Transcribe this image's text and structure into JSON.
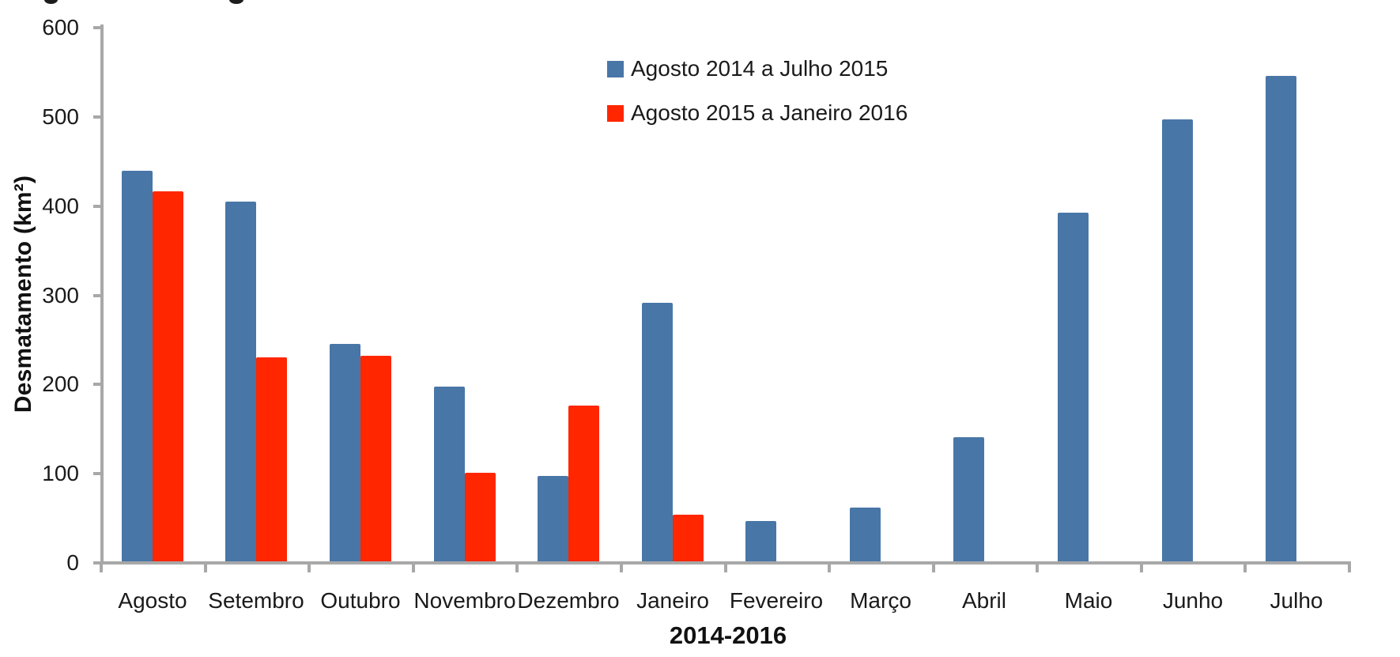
{
  "chart_data": {
    "type": "bar",
    "title": "",
    "categories": [
      "Agosto",
      "Setembro",
      "Outubro",
      "Novembro",
      "Dezembro",
      "Janeiro",
      "Fevereiro",
      "Março",
      "Abril",
      "Maio",
      "Junho",
      "Julho"
    ],
    "series": [
      {
        "name": "Agosto 2014 a Julho 2015",
        "color": "#4876A7",
        "values": [
          438,
          403,
          244,
          196,
          96,
          290,
          45,
          60,
          139,
          391,
          495,
          544
        ]
      },
      {
        "name": "Agosto 2015 a Janeiro 2016",
        "color": "#FF2600",
        "values": [
          415,
          229,
          230,
          99,
          175,
          52,
          null,
          null,
          null,
          null,
          null,
          null
        ]
      }
    ],
    "xlabel": "2014-2016",
    "ylabel": "Desmatamento (km²)",
    "ylim": [
      0,
      600
    ],
    "yticks": [
      0,
      100,
      200,
      300,
      400,
      500,
      600
    ],
    "grid": false,
    "legend_position": "top-center",
    "axis_color": "#A8A8A8",
    "text_color": "#1A1A1A",
    "background": "#FFFFFF"
  }
}
